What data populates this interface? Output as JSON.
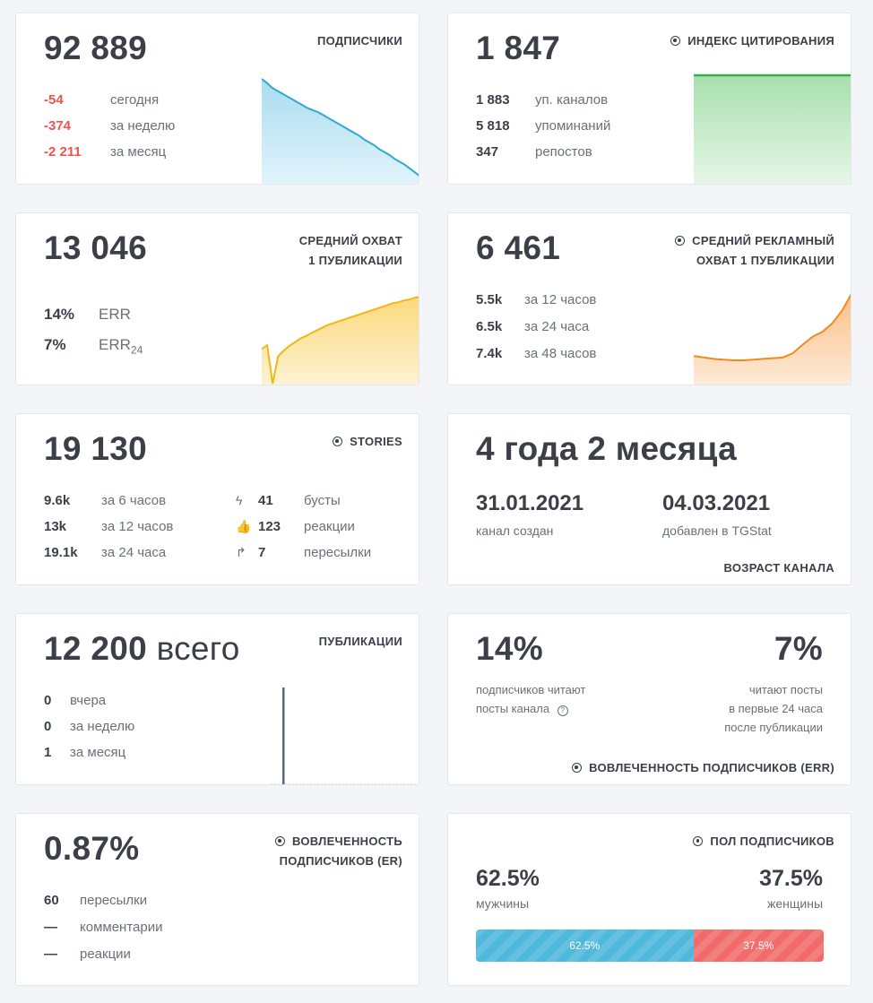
{
  "subscribers": {
    "value": "92 889",
    "title": "ПОДПИСЧИКИ",
    "rows": [
      {
        "value": "-54",
        "label": "сегодня"
      },
      {
        "value": "-374",
        "label": "за неделю"
      },
      {
        "value": "-2 211",
        "label": "за месяц"
      }
    ],
    "trend": [
      100,
      96,
      91,
      88,
      85,
      82,
      79,
      76,
      73,
      70,
      68,
      66,
      63,
      60,
      57,
      54,
      51,
      48,
      45,
      42,
      38,
      35,
      32,
      28,
      25,
      22,
      18,
      15,
      12,
      8,
      4,
      0
    ]
  },
  "citation": {
    "value": "1 847",
    "title": "ИНДЕКС ЦИТИРОВАНИЯ",
    "rows": [
      {
        "value": "1 883",
        "label": "уп. каналов"
      },
      {
        "value": "5 818",
        "label": "упоминаний"
      },
      {
        "value": "347",
        "label": "репостов"
      }
    ]
  },
  "reach": {
    "value": "13 046",
    "title_line1": "СРЕДНИЙ ОХВАТ",
    "title_line2": "1 ПУБЛИКАЦИИ",
    "err_value": "14%",
    "err_label": "ERR",
    "err24_value": "7%",
    "err24_label": "ERR",
    "err24_sub": "24",
    "trend": [
      38,
      42,
      0,
      30,
      36,
      41,
      45,
      49,
      52,
      55,
      58,
      61,
      64,
      66,
      68,
      70,
      72,
      74,
      76,
      78,
      80,
      82,
      84,
      86,
      88,
      89,
      91,
      92,
      94,
      95
    ]
  },
  "ad_reach": {
    "value": "6 461",
    "title_line1": "СРЕДНИЙ РЕКЛАМНЫЙ",
    "title_line2": "ОХВАТ 1 ПУБЛИКАЦИИ",
    "rows": [
      {
        "value": "5.5k",
        "label": "за 12 часов"
      },
      {
        "value": "6.5k",
        "label": "за 24 часа"
      },
      {
        "value": "7.4k",
        "label": "за 48 часов"
      }
    ],
    "trend": [
      6,
      4,
      2,
      1,
      0,
      0,
      1,
      2,
      3,
      4,
      10,
      22,
      33,
      40,
      52,
      70,
      95
    ]
  },
  "stories": {
    "value": "19 130",
    "title": "STORIES",
    "rows": [
      {
        "value": "9.6k",
        "label": "за 6 часов"
      },
      {
        "value": "13k",
        "label": "за 12 часов"
      },
      {
        "value": "19.1k",
        "label": "за 24 часа"
      }
    ],
    "actions": [
      {
        "value": "41",
        "label": "бусты"
      },
      {
        "value": "123",
        "label": "реакции"
      },
      {
        "value": "7",
        "label": "пересылки"
      }
    ]
  },
  "age": {
    "value": "4 года 2 месяца",
    "created_date": "31.01.2021",
    "created_label": "канал создан",
    "added_date": "04.03.2021",
    "added_label": "добавлен в TGStat",
    "title": "ВОЗРАСТ КАНАЛА"
  },
  "posts": {
    "value": "12 200",
    "unit": "всего",
    "title": "ПУБЛИКАЦИИ",
    "rows": [
      {
        "value": "0",
        "label": "вчера"
      },
      {
        "value": "0",
        "label": "за неделю"
      },
      {
        "value": "1",
        "label": "за месяц"
      }
    ]
  },
  "err": {
    "left_value": "14%",
    "left_line1": "подписчиков читают",
    "left_line2": "посты канала",
    "right_value": "7%",
    "right_line1": "читают посты",
    "right_line2": "в первые 24 часа",
    "right_line3": "после публикации",
    "title": "ВОВЛЕЧЕННОСТЬ ПОДПИСЧИКОВ (ERR)"
  },
  "er": {
    "value": "0.87%",
    "title_line1": "ВОВЛЕЧЕННОСТЬ",
    "title_line2": "ПОДПИСЧИКОВ (ER)",
    "rows": [
      {
        "value": "60",
        "label": "пересылки"
      },
      {
        "value": "—",
        "label": "комментарии"
      },
      {
        "value": "—",
        "label": "реакции"
      }
    ]
  },
  "gender": {
    "title": "ПОЛ ПОДПИСЧИКОВ",
    "male_value": "62.5%",
    "male_label": "мужчины",
    "female_value": "37.5%",
    "female_label": "женщины",
    "male_share": 62.5,
    "male_color": "#4fb8dd",
    "female_color": "#f16b6b"
  }
}
